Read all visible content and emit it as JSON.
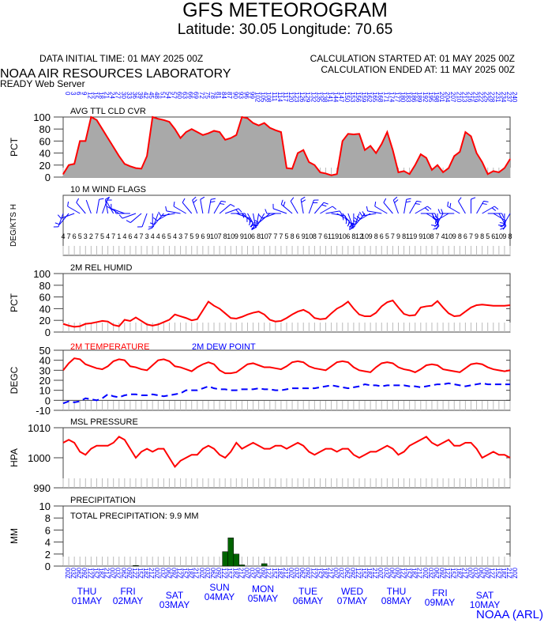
{
  "header": {
    "title": "GFS METEOROGRAM",
    "subtitle": "Latitude: 30.05 Longitude:  70.65",
    "initial_time": "DATA INITIAL TIME: 01 MAY 2025 00Z",
    "calc_started": "CALCULATION STARTED AT: 01 MAY 2025 00Z",
    "calc_ended": "CALCULATION ENDED AT: 11 MAY 2025 00Z",
    "org": "NOAA AIR RESOURCES LABORATORY",
    "server": "READY Web Server",
    "footer": "NOAA (ARL)"
  },
  "colors": {
    "line": "#ff0000",
    "dew": "#0000ff",
    "fill": "#a9a9a9",
    "precip": "#006400",
    "axis_text": "#0000ff"
  },
  "time_axis": {
    "forecast_hours_step": 3,
    "forecast_hours_max": 240,
    "utc_labels": [
      "00Z",
      "03Z",
      "06Z",
      "09Z",
      "12Z",
      "15Z",
      "18Z",
      "21Z"
    ],
    "days": [
      {
        "dow": "THU",
        "date": "01MAY"
      },
      {
        "dow": "FRI",
        "date": "02MAY"
      },
      {
        "dow": "SAT",
        "date": "03MAY"
      },
      {
        "dow": "SUN",
        "date": "04MAY"
      },
      {
        "dow": "MON",
        "date": "05MAY"
      },
      {
        "dow": "TUE",
        "date": "06MAY"
      },
      {
        "dow": "WED",
        "date": "07MAY"
      },
      {
        "dow": "THU",
        "date": "08MAY"
      },
      {
        "dow": "FRI",
        "date": "09MAY"
      },
      {
        "dow": "SAT",
        "date": "10MAY"
      }
    ]
  },
  "chart_data": [
    {
      "type": "area",
      "title": "AVG TTL CLD CVR",
      "ylabel": "PCT",
      "ylim": [
        0,
        100
      ],
      "yticks": [
        0,
        20,
        40,
        60,
        80,
        100
      ],
      "values": [
        5,
        20,
        22,
        60,
        60,
        100,
        95,
        80,
        65,
        50,
        35,
        22,
        18,
        15,
        14,
        35,
        100,
        97,
        95,
        92,
        80,
        65,
        75,
        80,
        75,
        70,
        73,
        77,
        75,
        62,
        65,
        70,
        100,
        98,
        90,
        86,
        90,
        82,
        78,
        75,
        15,
        14,
        40,
        45,
        25,
        20,
        8,
        6,
        3,
        5,
        60,
        72,
        71,
        72,
        45,
        52,
        40,
        55,
        75,
        45,
        8,
        10,
        5,
        20,
        38,
        32,
        12,
        20,
        8,
        15,
        35,
        42,
        75,
        68,
        40,
        25,
        5,
        10,
        8,
        15,
        30
      ]
    },
    {
      "type": "wind",
      "title": "10 M  WIND FLAGS",
      "ylabel": "DEG/KTS  H",
      "direction": [
        200,
        220,
        250,
        300,
        320,
        340,
        10,
        20,
        350,
        330,
        300,
        290,
        270,
        250,
        230,
        200,
        180,
        200,
        220,
        240,
        260,
        280,
        300,
        320,
        340,
        350,
        10,
        30,
        50,
        70,
        90,
        110,
        130,
        150,
        170,
        190,
        210,
        230,
        250,
        270,
        290,
        310,
        330,
        350,
        20,
        40,
        60,
        80,
        100,
        120,
        140,
        160,
        180,
        200,
        220,
        240,
        260,
        280,
        300,
        320,
        340,
        10,
        30,
        60,
        90,
        120,
        150,
        180,
        210,
        240,
        270,
        300,
        330,
        0,
        30,
        60,
        90,
        120,
        150,
        180,
        210
      ],
      "speed": [
        4,
        7,
        6,
        5,
        3,
        2,
        7,
        5,
        4,
        7,
        1,
        4,
        6,
        4,
        7,
        3,
        4,
        4,
        6,
        5,
        4,
        3,
        7,
        5,
        9,
        6,
        9,
        10,
        7,
        8,
        10,
        9,
        9,
        10,
        6,
        8,
        10,
        7,
        7,
        7,
        5,
        8,
        6,
        9,
        10,
        8,
        7,
        6,
        11,
        9,
        10,
        6,
        8,
        12,
        10,
        9,
        8,
        6,
        5,
        7,
        9,
        8,
        11,
        9,
        9,
        10,
        8,
        7,
        4,
        10,
        9,
        8,
        6,
        7,
        9,
        8,
        5,
        6,
        10,
        9,
        8
      ]
    },
    {
      "type": "line",
      "title": "2M REL HUMID",
      "ylabel": "PCT",
      "ylim": [
        0,
        100
      ],
      "yticks": [
        0,
        20,
        40,
        60,
        80,
        100
      ],
      "values": [
        14,
        11,
        9,
        10,
        14,
        15,
        17,
        19,
        18,
        12,
        10,
        21,
        19,
        25,
        19,
        13,
        11,
        13,
        17,
        21,
        30,
        27,
        24,
        20,
        22,
        37,
        52,
        45,
        40,
        32,
        24,
        23,
        26,
        30,
        33,
        35,
        30,
        21,
        18,
        19,
        24,
        30,
        35,
        38,
        33,
        24,
        22,
        23,
        32,
        40,
        45,
        52,
        40,
        30,
        27,
        27,
        33,
        44,
        51,
        54,
        42,
        31,
        28,
        29,
        42,
        44,
        45,
        53,
        42,
        32,
        27,
        28,
        35,
        42,
        46,
        47,
        46,
        45,
        45,
        45,
        46
      ]
    },
    {
      "type": "line",
      "title": "2M TEMPERATURE",
      "title2": "2M  DEW POINT",
      "ylabel": "DEGC",
      "ylim": [
        -10,
        50
      ],
      "yticks": [
        -10,
        0,
        10,
        20,
        30,
        40,
        50
      ],
      "series": [
        {
          "name": "2M TEMPERATURE",
          "values": [
            30,
            37,
            42,
            41,
            36,
            34,
            32,
            31,
            34,
            39,
            41,
            40,
            34,
            33,
            31,
            30,
            35,
            40,
            41,
            39,
            34,
            33,
            31,
            29,
            33,
            36,
            38,
            36,
            30,
            27,
            27,
            28,
            32,
            36,
            37,
            35,
            33,
            33,
            32,
            31,
            34,
            38,
            39,
            38,
            34,
            32,
            31,
            30,
            34,
            38,
            39,
            38,
            33,
            30,
            29,
            28,
            33,
            37,
            38,
            37,
            33,
            31,
            30,
            28,
            31,
            35,
            36,
            35,
            31,
            30,
            29,
            28,
            32,
            36,
            37,
            36,
            33,
            31,
            30,
            29,
            30
          ]
        },
        {
          "name": "2M  DEW POINT",
          "values": [
            -3,
            -1,
            -2,
            -1,
            2,
            1,
            0,
            2,
            6,
            4,
            3,
            5,
            6,
            6,
            5,
            5,
            6,
            5,
            4,
            5,
            6,
            7,
            10,
            10,
            10,
            12,
            14,
            12,
            11,
            11,
            10,
            10,
            11,
            11,
            11,
            12,
            11,
            11,
            10,
            10,
            11,
            12,
            12,
            12,
            12,
            12,
            13,
            14,
            15,
            14,
            13,
            12,
            13,
            14,
            16,
            15,
            15,
            14,
            15,
            15,
            15,
            15,
            14,
            14,
            13,
            14,
            15,
            16,
            16,
            17,
            16,
            15,
            14,
            15,
            16,
            17,
            16,
            16,
            16,
            16,
            16
          ]
        }
      ]
    },
    {
      "type": "line",
      "title": "MSL PRESSURE",
      "ylabel": "HPA",
      "ylim": [
        990,
        1010
      ],
      "yticks": [
        990,
        1000,
        1010
      ],
      "values": [
        1005,
        1006,
        1005,
        1002,
        1001,
        1003,
        1004,
        1004,
        1004,
        1005,
        1007,
        1006,
        1003,
        1000,
        1002,
        1003,
        1002,
        1003,
        1003,
        1000,
        997,
        999,
        1000,
        1001,
        1001,
        1003,
        1004,
        1003,
        1001,
        1000,
        1002,
        1005,
        1003,
        1004,
        1005,
        1004,
        1003,
        1003,
        1004,
        1004,
        1003,
        1004,
        1005,
        1004,
        1002,
        1001,
        1002,
        1003,
        1003,
        1002,
        1003,
        1003,
        1001,
        1000,
        1001,
        1002,
        1002,
        1003,
        1004,
        1003,
        1001,
        1002,
        1004,
        1005,
        1006,
        1007,
        1005,
        1004,
        1005,
        1006,
        1004,
        1004,
        1005,
        1005,
        1003,
        1000,
        1001,
        1002,
        1001,
        1001,
        1000
      ]
    },
    {
      "type": "bar",
      "title": "PRECIPITATION",
      "annotation": "TOTAL PRECIPITATION:   9.9 MM",
      "ylabel": "MM",
      "ylim": [
        0,
        10
      ],
      "yticks": [
        0,
        2,
        4,
        6,
        8,
        10
      ],
      "values": [
        0,
        0,
        0,
        0,
        0,
        0,
        0,
        0,
        0,
        0,
        0,
        0,
        0,
        0.1,
        0,
        0,
        0,
        0,
        0,
        0,
        0,
        0,
        0,
        0,
        0,
        0,
        0,
        0,
        0,
        2.4,
        4.7,
        2.0,
        0.2,
        0,
        0,
        0,
        0.4,
        0,
        0,
        0,
        0,
        0,
        0,
        0,
        0,
        0,
        0,
        0,
        0,
        0,
        0,
        0,
        0,
        0,
        0,
        0,
        0,
        0,
        0,
        0,
        0,
        0,
        0,
        0,
        0,
        0,
        0,
        0,
        0,
        0,
        0,
        0,
        0,
        0,
        0,
        0,
        0,
        0,
        0,
        0,
        0
      ]
    }
  ]
}
